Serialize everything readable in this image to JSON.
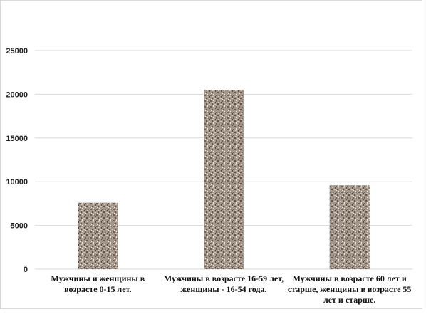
{
  "chart_data": {
    "type": "bar",
    "title": "",
    "xlabel": "",
    "ylabel": "",
    "categories": [
      "Мужчины и женщины в возрасте 0-15 лет.",
      "Мужчины в возрасте 16-59 лет, женщины - 16-54 года.",
      "Мужчины в возрасте 60 лет и старше, женщины в возрасте 55 лет и старше."
    ],
    "values": [
      7600,
      20500,
      9600
    ],
    "ylim": [
      0,
      25000
    ],
    "yticks": [
      0,
      5000,
      10000,
      15000,
      20000,
      25000
    ],
    "grid": true,
    "legend": "none",
    "bar_color": "#a39689",
    "grid_color": "#d9d9d9"
  }
}
